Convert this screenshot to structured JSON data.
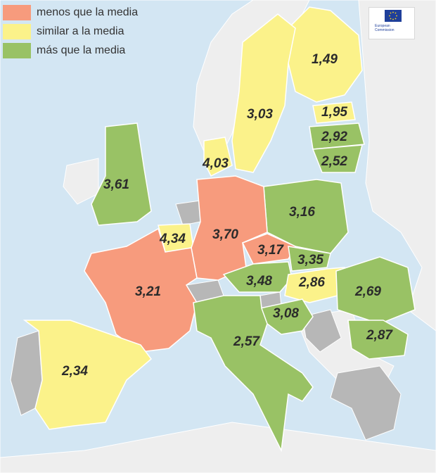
{
  "colors": {
    "sea": "#d3e6f3",
    "land_other": "#eeeeee",
    "land_nodata": "#b7b7b7",
    "border": "#ffffff",
    "less": "#f79b7d",
    "similar": "#fbf28a",
    "more": "#99c265"
  },
  "legend": [
    {
      "label": "menos que la media",
      "color": "#f79b7d"
    },
    {
      "label": "similar a la media",
      "color": "#fbf28a"
    },
    {
      "label": "más que la media",
      "color": "#99c265"
    }
  ],
  "logo": {
    "icon": "eu-flag-icon",
    "text_line1": "European",
    "text_line2": "Commission"
  },
  "regions": [
    {
      "id": "fi",
      "value": "1,49",
      "category": "similar"
    },
    {
      "id": "se",
      "value": "3,03",
      "category": "similar"
    },
    {
      "id": "ee",
      "value": "1,95",
      "category": "similar"
    },
    {
      "id": "lv",
      "value": "2,92",
      "category": "more"
    },
    {
      "id": "lt",
      "value": "2,52",
      "category": "more"
    },
    {
      "id": "dk",
      "value": "4,03",
      "category": "similar"
    },
    {
      "id": "uk",
      "value": "3,61",
      "category": "more"
    },
    {
      "id": "pl",
      "value": "3,16",
      "category": "more"
    },
    {
      "id": "be",
      "value": "4,34",
      "category": "similar"
    },
    {
      "id": "de",
      "value": "3,70",
      "category": "less"
    },
    {
      "id": "cz",
      "value": "3,17",
      "category": "less"
    },
    {
      "id": "sk",
      "value": "3,35",
      "category": "more"
    },
    {
      "id": "fr",
      "value": "3,21",
      "category": "less"
    },
    {
      "id": "at",
      "value": "3,48",
      "category": "more"
    },
    {
      "id": "hu",
      "value": "2,86",
      "category": "similar"
    },
    {
      "id": "ro",
      "value": "2,69",
      "category": "more"
    },
    {
      "id": "hr",
      "value": "3,08",
      "category": "more"
    },
    {
      "id": "it",
      "value": "2,57",
      "category": "more"
    },
    {
      "id": "bg",
      "value": "2,87",
      "category": "more"
    },
    {
      "id": "es",
      "value": "2,34",
      "category": "similar"
    }
  ]
}
